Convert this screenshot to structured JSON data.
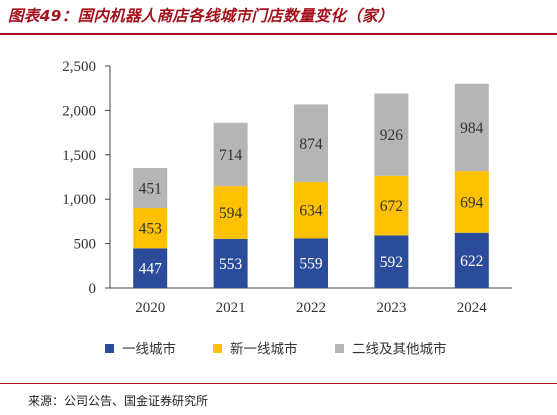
{
  "header": {
    "title": "图表49：国内机器人商店各线城市门店数量变化（家）"
  },
  "footer": {
    "source": "来源：公司公告、国金证券研究所"
  },
  "colors": {
    "accent": "#a3121c",
    "series": [
      "#2b4c9a",
      "#fdc100",
      "#b5b5b5"
    ],
    "label_light": "#ffffff",
    "label_dark": "#333333"
  },
  "chart_data": {
    "type": "bar",
    "stacked": true,
    "categories": [
      "2020",
      "2021",
      "2022",
      "2023",
      "2024"
    ],
    "series": [
      {
        "name": "一线城市",
        "values": [
          447,
          553,
          559,
          592,
          622
        ]
      },
      {
        "name": "新一线城市",
        "values": [
          453,
          594,
          634,
          672,
          694
        ]
      },
      {
        "name": "二线及其他城市",
        "values": [
          451,
          714,
          874,
          926,
          984
        ]
      }
    ],
    "ylim": [
      0,
      2500
    ],
    "yticks": [
      "0",
      "500",
      "1,000",
      "1,500",
      "2,000",
      "2,500"
    ],
    "ytick_values": [
      0,
      500,
      1000,
      1500,
      2000,
      2500
    ],
    "grid": false,
    "legend_position": "bottom",
    "data_labels": true
  }
}
